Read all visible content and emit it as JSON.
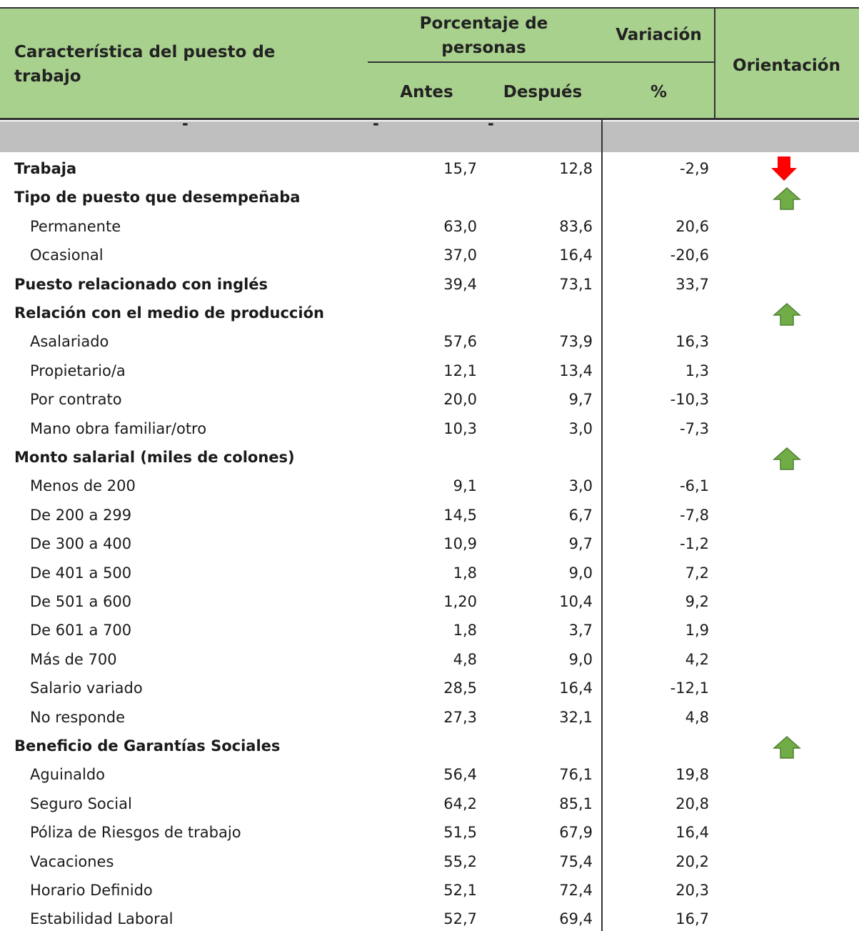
{
  "header": {
    "characteristic": [
      "Característica del puesto de",
      "trabajo"
    ],
    "percent_group": [
      "Porcentaje de",
      "personas"
    ],
    "variation_group": "Variación",
    "orientation": "Orientación",
    "before": "Antes",
    "after": "Después",
    "percent": "%"
  },
  "dashes": [
    "-",
    "-",
    "-"
  ],
  "rows": [
    {
      "label": "Trabaja",
      "bold": true,
      "antes": "15,7",
      "despues": "12,8",
      "variacion": "-2,9",
      "orientation": "down"
    },
    {
      "label": "Tipo de puesto que desempeñaba",
      "bold": true,
      "orientation": "up"
    },
    {
      "label": "Permanente",
      "antes": "63,0",
      "despues": "83,6",
      "variacion": "20,6"
    },
    {
      "label": "Ocasional",
      "antes": "37,0",
      "despues": "16,4",
      "variacion": "-20,6"
    },
    {
      "label": "Puesto relacionado con inglés",
      "bold": true,
      "antes": "39,4",
      "despues": "73,1",
      "variacion": "33,7"
    },
    {
      "label": "Relación con el medio de producción",
      "bold": true,
      "orientation": "up"
    },
    {
      "label": "Asalariado",
      "antes": "57,6",
      "despues": "73,9",
      "variacion": "16,3"
    },
    {
      "label": "Propietario/a",
      "antes": "12,1",
      "despues": "13,4",
      "variacion": "1,3"
    },
    {
      "label": "Por contrato",
      "antes": "20,0",
      "despues": "9,7",
      "variacion": "-10,3"
    },
    {
      "label": "Mano obra familiar/otro",
      "antes": "10,3",
      "despues": "3,0",
      "variacion": "-7,3"
    },
    {
      "label": "Monto salarial (miles de colones)",
      "bold": true,
      "orientation": "up"
    },
    {
      "label": "Menos de 200",
      "antes": "9,1",
      "despues": "3,0",
      "variacion": "-6,1"
    },
    {
      "label": "De 200 a 299",
      "antes": "14,5",
      "despues": "6,7",
      "variacion": "-7,8"
    },
    {
      "label": "De 300 a 400",
      "antes": "10,9",
      "despues": "9,7",
      "variacion": "-1,2"
    },
    {
      "label": "De 401 a 500",
      "antes": "1,8",
      "despues": "9,0",
      "variacion": "7,2"
    },
    {
      "label": "De 501 a 600",
      "antes": "1,20",
      "despues": "10,4",
      "variacion": "9,2"
    },
    {
      "label": "De 601 a 700",
      "antes": "1,8",
      "despues": "3,7",
      "variacion": "1,9"
    },
    {
      "label": "Más de 700",
      "antes": "4,8",
      "despues": "9,0",
      "variacion": "4,2"
    },
    {
      "label": "Salario variado",
      "antes": "28,5",
      "despues": "16,4",
      "variacion": "-12,1"
    },
    {
      "label": "No responde",
      "antes": "27,3",
      "despues": "32,1",
      "variacion": "4,8"
    },
    {
      "label": "Beneficio de Garantías Sociales",
      "bold": true,
      "orientation": "up"
    },
    {
      "label": "Aguinaldo",
      "antes": "56,4",
      "despues": "76,1",
      "variacion": "19,8"
    },
    {
      "label": "Seguro Social",
      "antes": "64,2",
      "despues": "85,1",
      "variacion": "20,8"
    },
    {
      "label": "Póliza de Riesgos de trabajo",
      "antes": "51,5",
      "despues": "67,9",
      "variacion": "16,4"
    },
    {
      "label": "Vacaciones",
      "antes": "55,2",
      "despues": "75,4",
      "variacion": "20,2"
    },
    {
      "label": "Horario Definido",
      "antes": "52,1",
      "despues": "72,4",
      "variacion": "20,3"
    },
    {
      "label": "Estabilidad Laboral",
      "antes": "52,7",
      "despues": "69,4",
      "variacion": "16,7"
    }
  ]
}
